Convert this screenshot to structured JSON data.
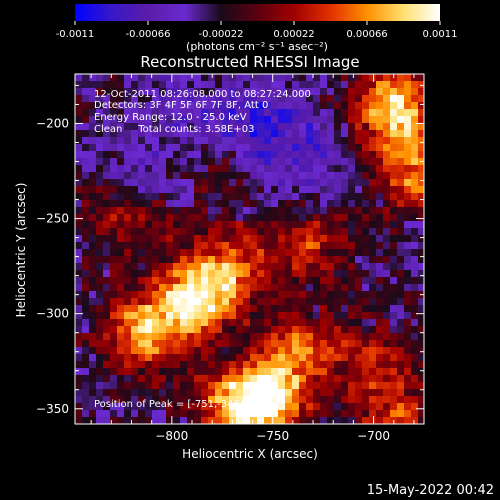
{
  "chart_data": {
    "type": "heatmap",
    "title": "Reconstructed RHESSI Image",
    "xlabel": "Heliocentric X (arcsec)",
    "ylabel": "Heliocentric Y (arcsec)",
    "xlim": [
      -848,
      -675
    ],
    "ylim": [
      -358,
      -174
    ],
    "x_ticks": [
      -800,
      -750,
      -700
    ],
    "y_ticks": [
      -350,
      -300,
      -250,
      -200
    ],
    "x_tick_labels": [
      "−800",
      "−750",
      "−700"
    ],
    "y_tick_labels": [
      "−350",
      "−300",
      "−250",
      "−200"
    ],
    "annotations": [
      "12-Oct-2011 08:26:08.000 to 08:27:24.000",
      "Detectors: 3F 4F 5F 6F 7F 8F, Att 0",
      "Energy Range: 12.0 - 25.0 keV",
      "Clean     Total counts: 3.58E+03"
    ],
    "peak_label": "Position of Peak = [-751,-346]",
    "colorbar": {
      "range": [
        -0.0011,
        0.0011
      ],
      "tick_labels": [
        "-0.0011",
        "-0.00066",
        "-0.00022",
        "0.00022",
        "0.00066",
        "0.0011"
      ],
      "unit_label": "(photons cm⁻² s⁻¹ asec⁻²)",
      "colors": [
        "#0000ff",
        "#3818c8",
        "#5a1ca8",
        "#6a2ad0",
        "#1a0a1a",
        "#5a0010",
        "#a00000",
        "#e03000",
        "#ff9000",
        "#ffe070",
        "#ffffff"
      ]
    },
    "hotspots": [
      {
        "x": -690,
        "y": -192,
        "strength": 1.0
      },
      {
        "x": -680,
        "y": -225,
        "strength": 0.65
      },
      {
        "x": -790,
        "y": -294,
        "strength": 0.95
      },
      {
        "x": -772,
        "y": -275,
        "strength": 0.7
      },
      {
        "x": -815,
        "y": -310,
        "strength": 0.75
      },
      {
        "x": -752,
        "y": -344,
        "strength": 1.0
      },
      {
        "x": -770,
        "y": -350,
        "strength": 0.65
      },
      {
        "x": -738,
        "y": -318,
        "strength": 0.55
      },
      {
        "x": -700,
        "y": -325,
        "strength": 0.45
      },
      {
        "x": -690,
        "y": -355,
        "strength": 0.5
      },
      {
        "x": -820,
        "y": -250,
        "strength": 0.45
      },
      {
        "x": -780,
        "y": -222,
        "strength": 0.25
      },
      {
        "x": -732,
        "y": -262,
        "strength": 0.5
      }
    ],
    "coldspots": [
      {
        "x": -765,
        "y": -200,
        "strength": 0.9
      },
      {
        "x": -745,
        "y": -205,
        "strength": 0.7
      },
      {
        "x": -810,
        "y": -230,
        "strength": 0.6
      },
      {
        "x": -730,
        "y": -230,
        "strength": 0.55
      },
      {
        "x": -800,
        "y": -190,
        "strength": 0.55
      }
    ]
  },
  "footer": {
    "timestamp": "15-May-2022 00:42"
  }
}
